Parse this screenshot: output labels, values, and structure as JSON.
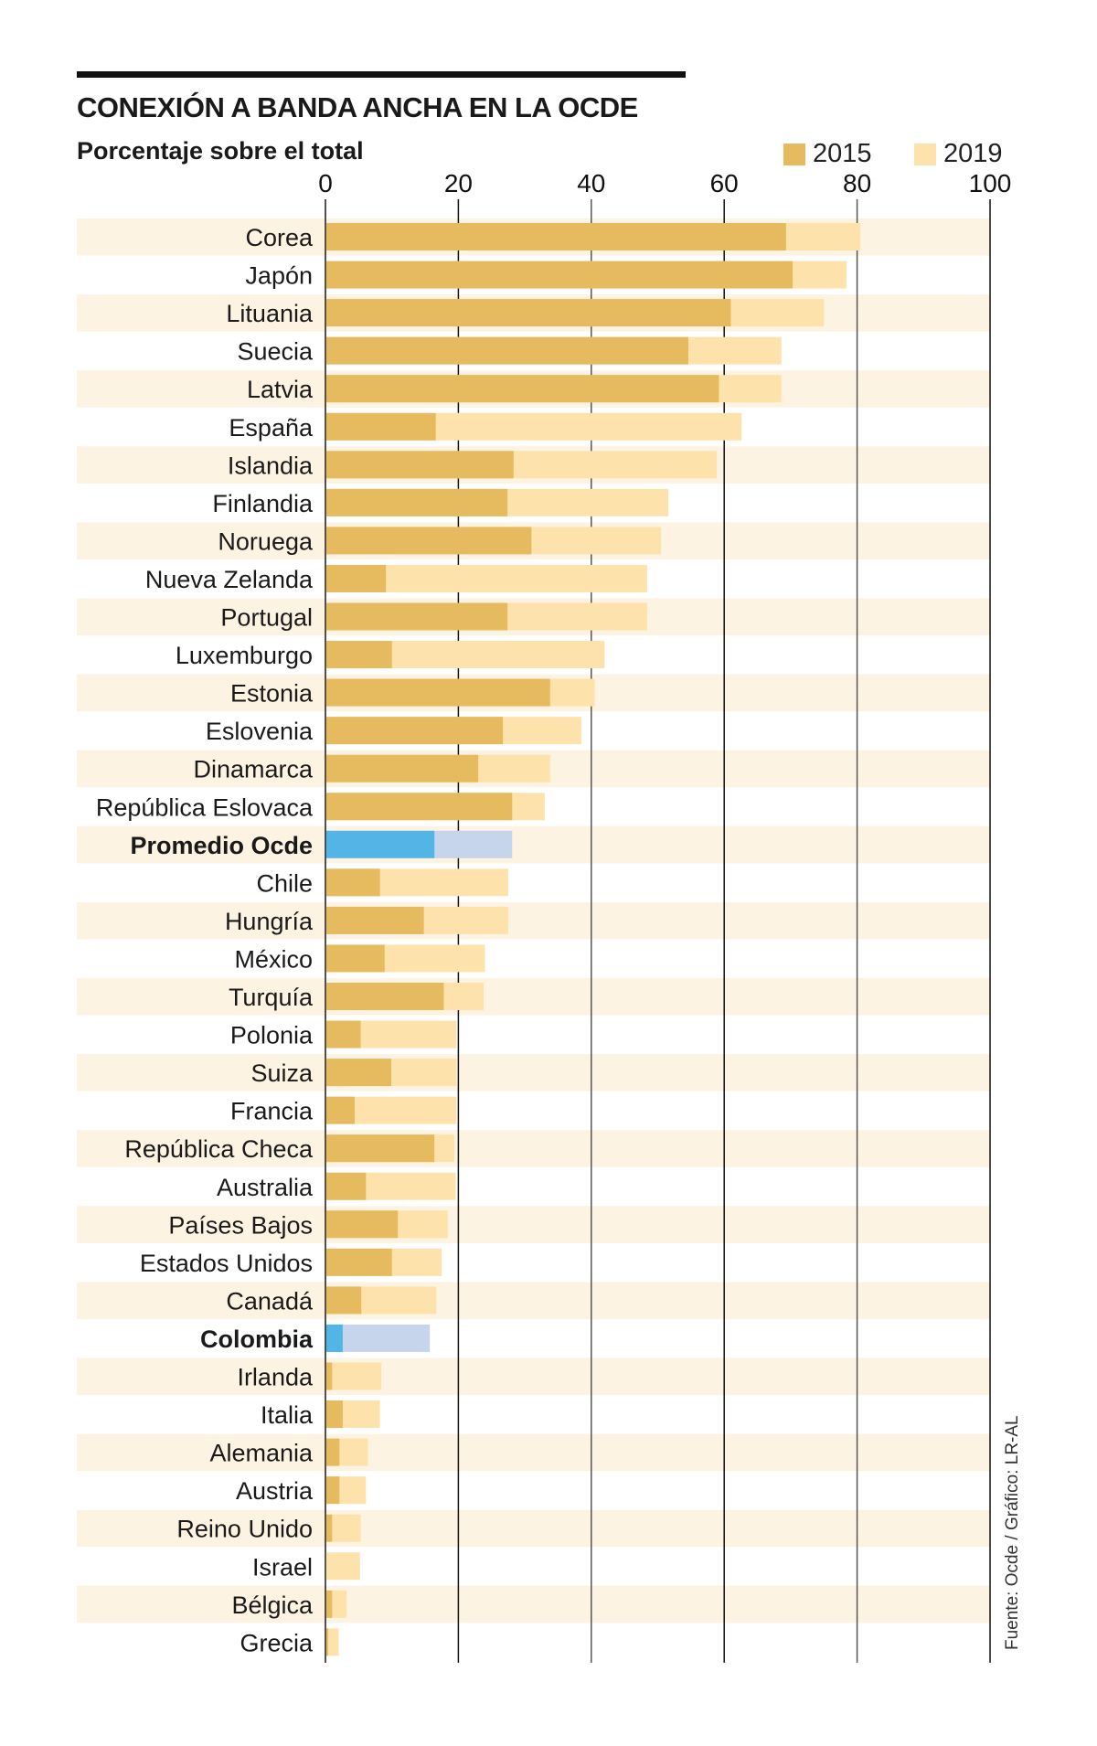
{
  "chart_data": {
    "type": "bar",
    "orientation": "horizontal",
    "title": "CONEXIÓN A BANDA ANCHA EN LA OCDE",
    "subtitle": "Porcentaje sobre el total",
    "xlabel": "",
    "ylabel": "",
    "xlim": [
      0,
      100
    ],
    "x_ticks": [
      "0",
      "20",
      "40",
      "60",
      "80",
      "100"
    ],
    "grid": true,
    "legend_position": "top-right",
    "series": [
      {
        "name": "2015",
        "color": "#e6ba5e",
        "highlight_color": "#53b5e6",
        "values": [
          69.3,
          70.3,
          61.0,
          54.6,
          59.2,
          16.6,
          28.3,
          27.4,
          31.0,
          9.1,
          27.4,
          10.0,
          33.8,
          26.7,
          23.0,
          28.1,
          16.4,
          8.2,
          14.8,
          8.9,
          17.8,
          5.3,
          9.9,
          4.4,
          16.4,
          6.1,
          10.9,
          10.0,
          5.4,
          2.6,
          1.0,
          2.6,
          2.1,
          2.1,
          1.0,
          0.0,
          1.0,
          0.4
        ]
      },
      {
        "name": "2019",
        "color": "#fde3ab",
        "highlight_color": "#c6d5ec",
        "values": [
          80.5,
          78.4,
          75.0,
          68.6,
          68.6,
          62.6,
          58.9,
          51.6,
          50.5,
          48.4,
          48.4,
          42.0,
          40.5,
          38.5,
          33.8,
          33.0,
          28.1,
          27.5,
          27.5,
          24.0,
          23.8,
          19.7,
          19.7,
          19.7,
          19.4,
          19.6,
          18.4,
          17.5,
          16.7,
          15.7,
          8.4,
          8.2,
          6.4,
          6.1,
          5.3,
          5.2,
          3.2,
          2.0
        ]
      }
    ],
    "categories": [
      "Corea",
      "Japón",
      "Lituania",
      "Suecia",
      "Latvia",
      "España",
      "Islandia",
      "Finlandia",
      "Noruega",
      "Nueva Zelanda",
      "Portugal",
      "Luxemburgo",
      "Estonia",
      "Eslovenia",
      "Dinamarca",
      "República Eslovaca",
      "Promedio Ocde",
      "Chile",
      "Hungría",
      "México",
      "Turquía",
      "Polonia",
      "Suiza",
      "Francia",
      "República Checa",
      "Australia",
      "Países Bajos",
      "Estados Unidos",
      "Canadá",
      "Colombia",
      "Irlanda",
      "Italia",
      "Alemania",
      "Austria",
      "Reino Unido",
      "Israel",
      "Bélgica",
      "Grecia"
    ],
    "highlighted_categories": [
      "Promedio Ocde",
      "Colombia"
    ],
    "row_band_color": "#fdf3e3",
    "source": "Fuente: Ocde / Gráfico: LR-AL"
  }
}
